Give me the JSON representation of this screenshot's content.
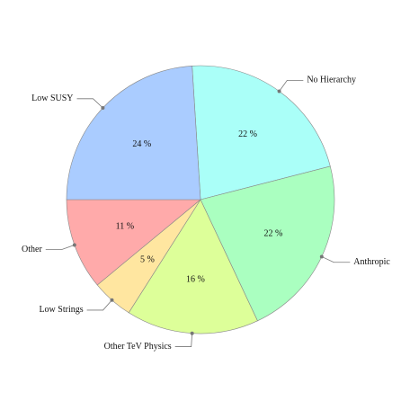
{
  "chart_data": {
    "type": "pie",
    "categories": [
      "No Hierarchy",
      "Anthropic",
      "Other TeV Physics",
      "Low Strings",
      "Other",
      "Low SUSY"
    ],
    "values": [
      22,
      22,
      16,
      5,
      11,
      24
    ],
    "value_labels": [
      "22 %",
      "22 %",
      "16 %",
      "5 %",
      "11 %",
      "24 %"
    ],
    "colors": [
      "#aafff8",
      "#aaffc0",
      "#ddff99",
      "#ffe6a0",
      "#ffaaaa",
      "#aaccff"
    ]
  }
}
